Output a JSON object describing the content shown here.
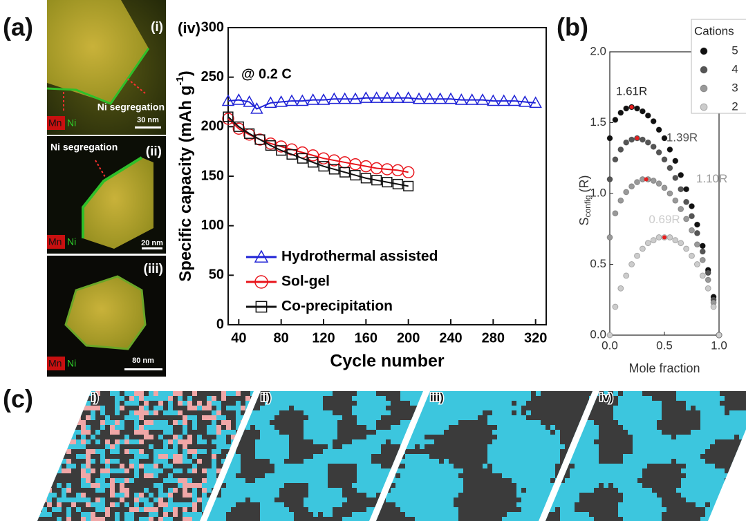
{
  "panel_labels": [
    "(a)",
    "(b)",
    "(c)"
  ],
  "micrographs": [
    {
      "label": "(i)",
      "annotation": "Ni segregation",
      "elements": [
        "Mn",
        "Ni"
      ],
      "scale": "30 nm"
    },
    {
      "label": "(ii)",
      "annotation": "Ni segregation",
      "elements": [
        "Mn",
        "Ni"
      ],
      "scale": "20 nm"
    },
    {
      "label": "(iii)",
      "elements": [
        "Mn",
        "Ni"
      ],
      "scale": "80 nm"
    }
  ],
  "simulations": [
    "i)",
    "ii)",
    "iii)",
    "iv)"
  ],
  "chart_data": [
    {
      "type": "line",
      "title": "(iv)",
      "annotation": "@ 0.2 C",
      "xlabel": "Cycle number",
      "ylabel": {
        "main": "Specific capacity (mAh g",
        "sup": "-1",
        "tail": ")"
      },
      "xlim": [
        30,
        330
      ],
      "ylim": [
        0,
        300
      ],
      "xticks": [
        40,
        80,
        120,
        160,
        200,
        240,
        280,
        320
      ],
      "yticks": [
        0,
        50,
        100,
        150,
        200,
        250,
        300
      ],
      "legend": "lower left",
      "series": [
        {
          "name": "Hydrothermal assisted",
          "color": "#1f22d6",
          "marker": "triangle",
          "x": [
            30,
            40,
            50,
            57,
            70,
            80,
            90,
            100,
            110,
            120,
            130,
            140,
            150,
            160,
            170,
            180,
            190,
            200,
            210,
            220,
            230,
            240,
            250,
            260,
            270,
            280,
            290,
            300,
            310,
            320
          ],
          "values": [
            226,
            227,
            225,
            218,
            224,
            225,
            226,
            226,
            227,
            227,
            228,
            228,
            228,
            229,
            229,
            229,
            229,
            229,
            228,
            228,
            228,
            228,
            227,
            227,
            227,
            226,
            226,
            226,
            225,
            224
          ]
        },
        {
          "name": "Sol-gel",
          "color": "#e8141b",
          "marker": "circle",
          "x": [
            30,
            40,
            50,
            60,
            70,
            80,
            90,
            100,
            110,
            120,
            130,
            140,
            150,
            160,
            170,
            180,
            190,
            200
          ],
          "values": [
            208,
            198,
            192,
            187,
            183,
            180,
            177,
            174,
            171,
            168,
            166,
            164,
            162,
            160,
            158,
            157,
            156,
            154
          ]
        },
        {
          "name": "Co-precipitation",
          "color": "#111111",
          "marker": "square",
          "x": [
            30,
            40,
            50,
            60,
            70,
            80,
            90,
            100,
            110,
            120,
            130,
            140,
            150,
            160,
            170,
            180,
            190,
            200
          ],
          "values": [
            210,
            200,
            193,
            187,
            181,
            176,
            172,
            168,
            164,
            160,
            157,
            154,
            151,
            148,
            146,
            144,
            142,
            140
          ]
        }
      ]
    },
    {
      "type": "scatter",
      "xlabel": "Mole fraction",
      "ylabel": {
        "main": "S",
        "sub": "config",
        "tail": "(R)"
      },
      "xlim": [
        0,
        1
      ],
      "ylim": [
        0,
        2
      ],
      "xticks": [
        {
          "value": 0,
          "label": "0.0"
        },
        0.5,
        {
          "value": 1,
          "label": "1.0"
        }
      ],
      "yticks": [
        {
          "value": 0,
          "label": "0.0"
        },
        0.5,
        {
          "value": 1,
          "label": "1.0"
        },
        1.5,
        {
          "value": 2,
          "label": "2.0"
        }
      ],
      "legend_title": "Cations",
      "legend": "upper right",
      "x": [
        0,
        0.05,
        0.1,
        0.15,
        0.2,
        0.25,
        0.3,
        0.35,
        0.4,
        0.45,
        0.5,
        0.55,
        0.6,
        0.65,
        0.7,
        0.75,
        0.8,
        0.85,
        0.9,
        0.95,
        1
      ],
      "series": [
        {
          "name": "5",
          "color": "#111111",
          "values": [
            1.39,
            1.52,
            1.57,
            1.6,
            1.61,
            1.6,
            1.58,
            1.55,
            1.51,
            1.45,
            1.39,
            1.31,
            1.23,
            1.13,
            1.03,
            0.91,
            0.78,
            0.63,
            0.46,
            0.27,
            0
          ]
        },
        {
          "name": "4",
          "color": "#555555",
          "values": [
            1.1,
            1.24,
            1.31,
            1.36,
            1.38,
            1.39,
            1.38,
            1.36,
            1.33,
            1.29,
            1.24,
            1.18,
            1.11,
            1.03,
            0.94,
            0.84,
            0.72,
            0.59,
            0.44,
            0.25,
            0
          ]
        },
        {
          "name": "3",
          "color": "#999999",
          "values": [
            0.69,
            0.86,
            0.95,
            1.01,
            1.05,
            1.08,
            1.1,
            1.1,
            1.09,
            1.07,
            1.04,
            1.0,
            0.95,
            0.89,
            0.82,
            0.74,
            0.64,
            0.53,
            0.39,
            0.23,
            0
          ]
        },
        {
          "name": "2",
          "color": "#cccccc",
          "values": [
            0,
            0.2,
            0.33,
            0.42,
            0.5,
            0.56,
            0.61,
            0.65,
            0.67,
            0.69,
            0.69,
            0.69,
            0.67,
            0.65,
            0.61,
            0.56,
            0.5,
            0.42,
            0.33,
            0.2,
            0
          ]
        }
      ],
      "annotations": [
        {
          "text": "1.61R",
          "x": 0.2,
          "y": 1.61
        },
        {
          "text": "1.39R",
          "x": 0.25,
          "y": 1.39
        },
        {
          "text": "1.10R",
          "x": 0.333,
          "y": 1.1
        },
        {
          "text": "0.69R",
          "x": 0.5,
          "y": 0.69
        }
      ]
    }
  ]
}
